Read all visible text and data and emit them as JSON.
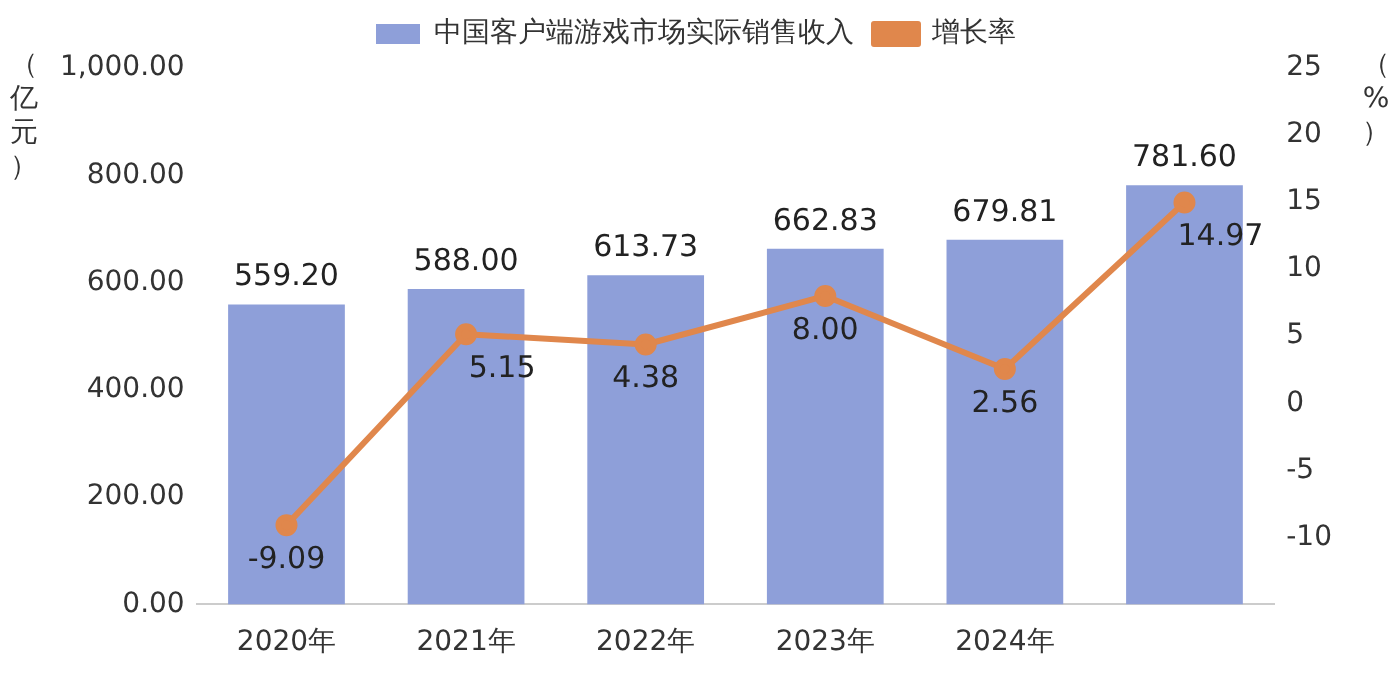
{
  "chart_data": {
    "type": "bar",
    "ylabel": "（亿元）",
    "y2label": "（%）",
    "categories": [
      "2020年",
      "2021年",
      "2022年",
      "2023年",
      "2024年",
      null
    ],
    "series": [
      {
        "name": "中国客户端游戏市场实际销售收入",
        "color": "#8e9fd9",
        "values": [
          559.2,
          588.0,
          613.73,
          662.83,
          679.81,
          781.6
        ],
        "value_labels": [
          "559.20",
          "588.00",
          "613.73",
          "662.83",
          "679.81",
          "781.60"
        ]
      },
      {
        "name": "增长率",
        "type": "line",
        "axis": "y2",
        "color": "#e0874c",
        "marker": "circle",
        "values": [
          -9.09,
          5.15,
          4.38,
          8.0,
          2.56,
          14.97
        ],
        "value_labels": [
          "-9.09",
          "5.15",
          "4.38",
          "8.00",
          "2.56",
          "14.97"
        ]
      }
    ],
    "ylim": [
      0,
      1000
    ],
    "yticks": [
      {
        "value": 0,
        "label": "0.00"
      },
      {
        "value": 200,
        "label": "200.00"
      },
      {
        "value": 400,
        "label": "400.00"
      },
      {
        "value": 600,
        "label": "600.00"
      },
      {
        "value": 800,
        "label": "800.00"
      },
      {
        "value": 1000,
        "label": "1,000.00"
      }
    ],
    "y2lim": [
      -15,
      25
    ],
    "y2ticks": [
      -10,
      -5,
      0,
      5,
      10,
      15,
      20,
      25
    ],
    "grid": false,
    "legend": "top"
  }
}
